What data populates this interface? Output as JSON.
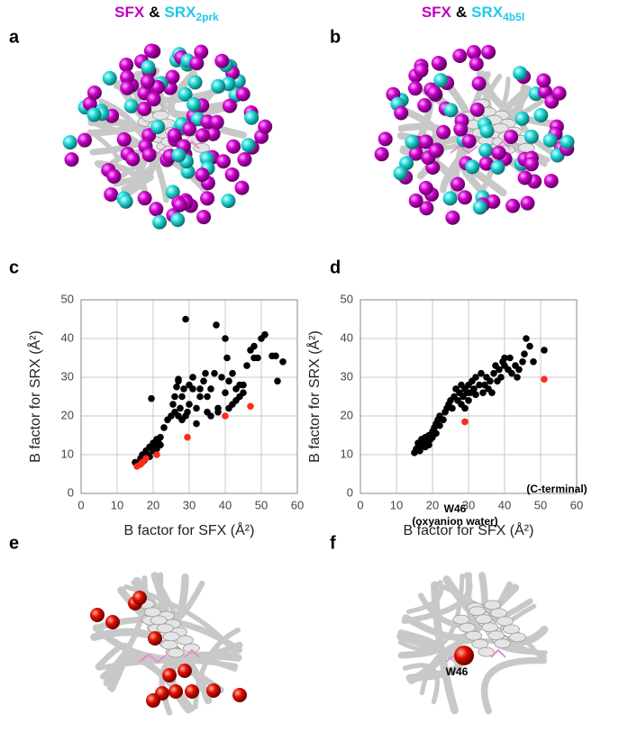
{
  "headings": [
    {
      "a": "SFX",
      "amp": "&",
      "b": "SRX",
      "sub": "2prk"
    },
    {
      "a": "SFX",
      "amp": "&",
      "b": "SRX",
      "sub": "4b5l"
    }
  ],
  "panels": [
    "a",
    "b",
    "c",
    "d",
    "e",
    "f"
  ],
  "labels": {
    "f": "W46"
  },
  "chart_data": [
    {
      "type": "scatter",
      "xlabel": "B factor for SFX (Å²)",
      "ylabel": "B factor for SRX (Å²)",
      "xlim": [
        0,
        60
      ],
      "xticks": [
        0,
        10,
        20,
        30,
        40,
        50,
        60
      ],
      "ylim": [
        0,
        50
      ],
      "yticks": [
        0,
        10,
        20,
        30,
        40,
        50
      ],
      "grid": true,
      "series": [
        {
          "color": "#000000",
          "x": [
            15,
            16,
            16.5,
            17,
            17.5,
            18,
            18.5,
            19,
            19,
            19.5,
            20,
            20,
            20.5,
            21,
            21,
            21.5,
            22,
            22,
            23,
            24,
            25,
            25.5,
            26,
            26,
            26.5,
            27,
            27,
            27.5,
            28,
            28,
            28.5,
            29,
            29,
            29.5,
            30,
            30,
            31,
            32,
            32,
            33,
            33,
            34,
            35,
            35,
            36,
            36,
            37,
            37.5,
            38,
            38,
            39,
            40,
            40,
            40.5,
            41,
            41,
            42,
            42,
            43,
            43,
            44,
            44,
            45,
            45,
            46,
            47,
            48,
            48,
            49,
            50,
            51,
            53,
            54,
            54.5,
            56,
            27,
            34.5,
            31
          ],
          "values": [
            8,
            7.5,
            9,
            10,
            8.5,
            11,
            10,
            12,
            9.5,
            24.5,
            11,
            13,
            12,
            11.5,
            14,
            13,
            12.5,
            14.5,
            17,
            19,
            20,
            23,
            25,
            21,
            27.5,
            29,
            20,
            22,
            19,
            25,
            27,
            45,
            20,
            21,
            28,
            23,
            27,
            18,
            22,
            25,
            27,
            29,
            21,
            25,
            20,
            27,
            31,
            43.5,
            22,
            21,
            30,
            40,
            26,
            35,
            29,
            22,
            31,
            23,
            24,
            27,
            25,
            28,
            26,
            28,
            33,
            37,
            35,
            38,
            35,
            40,
            41,
            35.5,
            35.5,
            29,
            34,
            29.5,
            31,
            30
          ]
        },
        {
          "color": "#ff2a1a",
          "x": [
            15.5,
            16.5,
            17,
            18,
            21,
            29.5,
            40,
            47
          ],
          "values": [
            7,
            7.5,
            8,
            9,
            10,
            14.5,
            20,
            22.5
          ]
        }
      ]
    },
    {
      "type": "scatter",
      "xlabel": "B factor for SFX (Å²)",
      "ylabel": "B factor for SRX (Å²)",
      "xlim": [
        0,
        60
      ],
      "xticks": [
        0,
        10,
        20,
        30,
        40,
        50,
        60
      ],
      "ylim": [
        0,
        50
      ],
      "yticks": [
        0,
        10,
        20,
        30,
        40,
        50
      ],
      "grid": true,
      "annotations": [
        "W46",
        "(oxyanion water)",
        "(C-terminal)"
      ],
      "series": [
        {
          "color": "#000000",
          "x": [
            15,
            15.5,
            16,
            16,
            16.5,
            17,
            17,
            17.5,
            18,
            18,
            18.5,
            19,
            19,
            19.5,
            20,
            20,
            20.5,
            21,
            21,
            21.5,
            22,
            22,
            23,
            23.5,
            24,
            24.5,
            25,
            25.5,
            26,
            26.5,
            27,
            27.5,
            28,
            28,
            28.5,
            29,
            29.5,
            30,
            30,
            31,
            31.5,
            32,
            32,
            33,
            33.5,
            34,
            34.5,
            35,
            35.5,
            36,
            36.5,
            37,
            37.5,
            38,
            38.5,
            39,
            39.5,
            40,
            40,
            41,
            41.5,
            42,
            43,
            43.5,
            44,
            45,
            45.5,
            46,
            47,
            48,
            51,
            30.5,
            29
          ],
          "values": [
            10.5,
            11.5,
            12,
            13,
            11,
            12.5,
            14,
            13,
            12,
            14.5,
            13.5,
            15,
            12.5,
            14,
            16,
            14.5,
            17,
            18,
            15.5,
            19,
            17.5,
            20,
            19,
            21,
            22,
            23,
            24,
            22,
            25,
            27,
            24,
            26,
            28,
            23,
            25,
            27,
            26,
            28,
            24,
            29,
            27,
            30,
            25.5,
            28,
            31,
            26,
            28,
            30,
            27,
            29,
            26,
            31,
            33,
            29,
            32,
            30,
            34,
            33,
            35,
            32,
            35,
            31,
            33,
            30,
            32,
            34,
            36,
            40,
            38,
            34,
            37,
            26,
            22
          ]
        },
        {
          "color": "#ff2a1a",
          "x": [
            29,
            51
          ],
          "values": [
            18.5,
            29.5
          ]
        }
      ]
    }
  ]
}
